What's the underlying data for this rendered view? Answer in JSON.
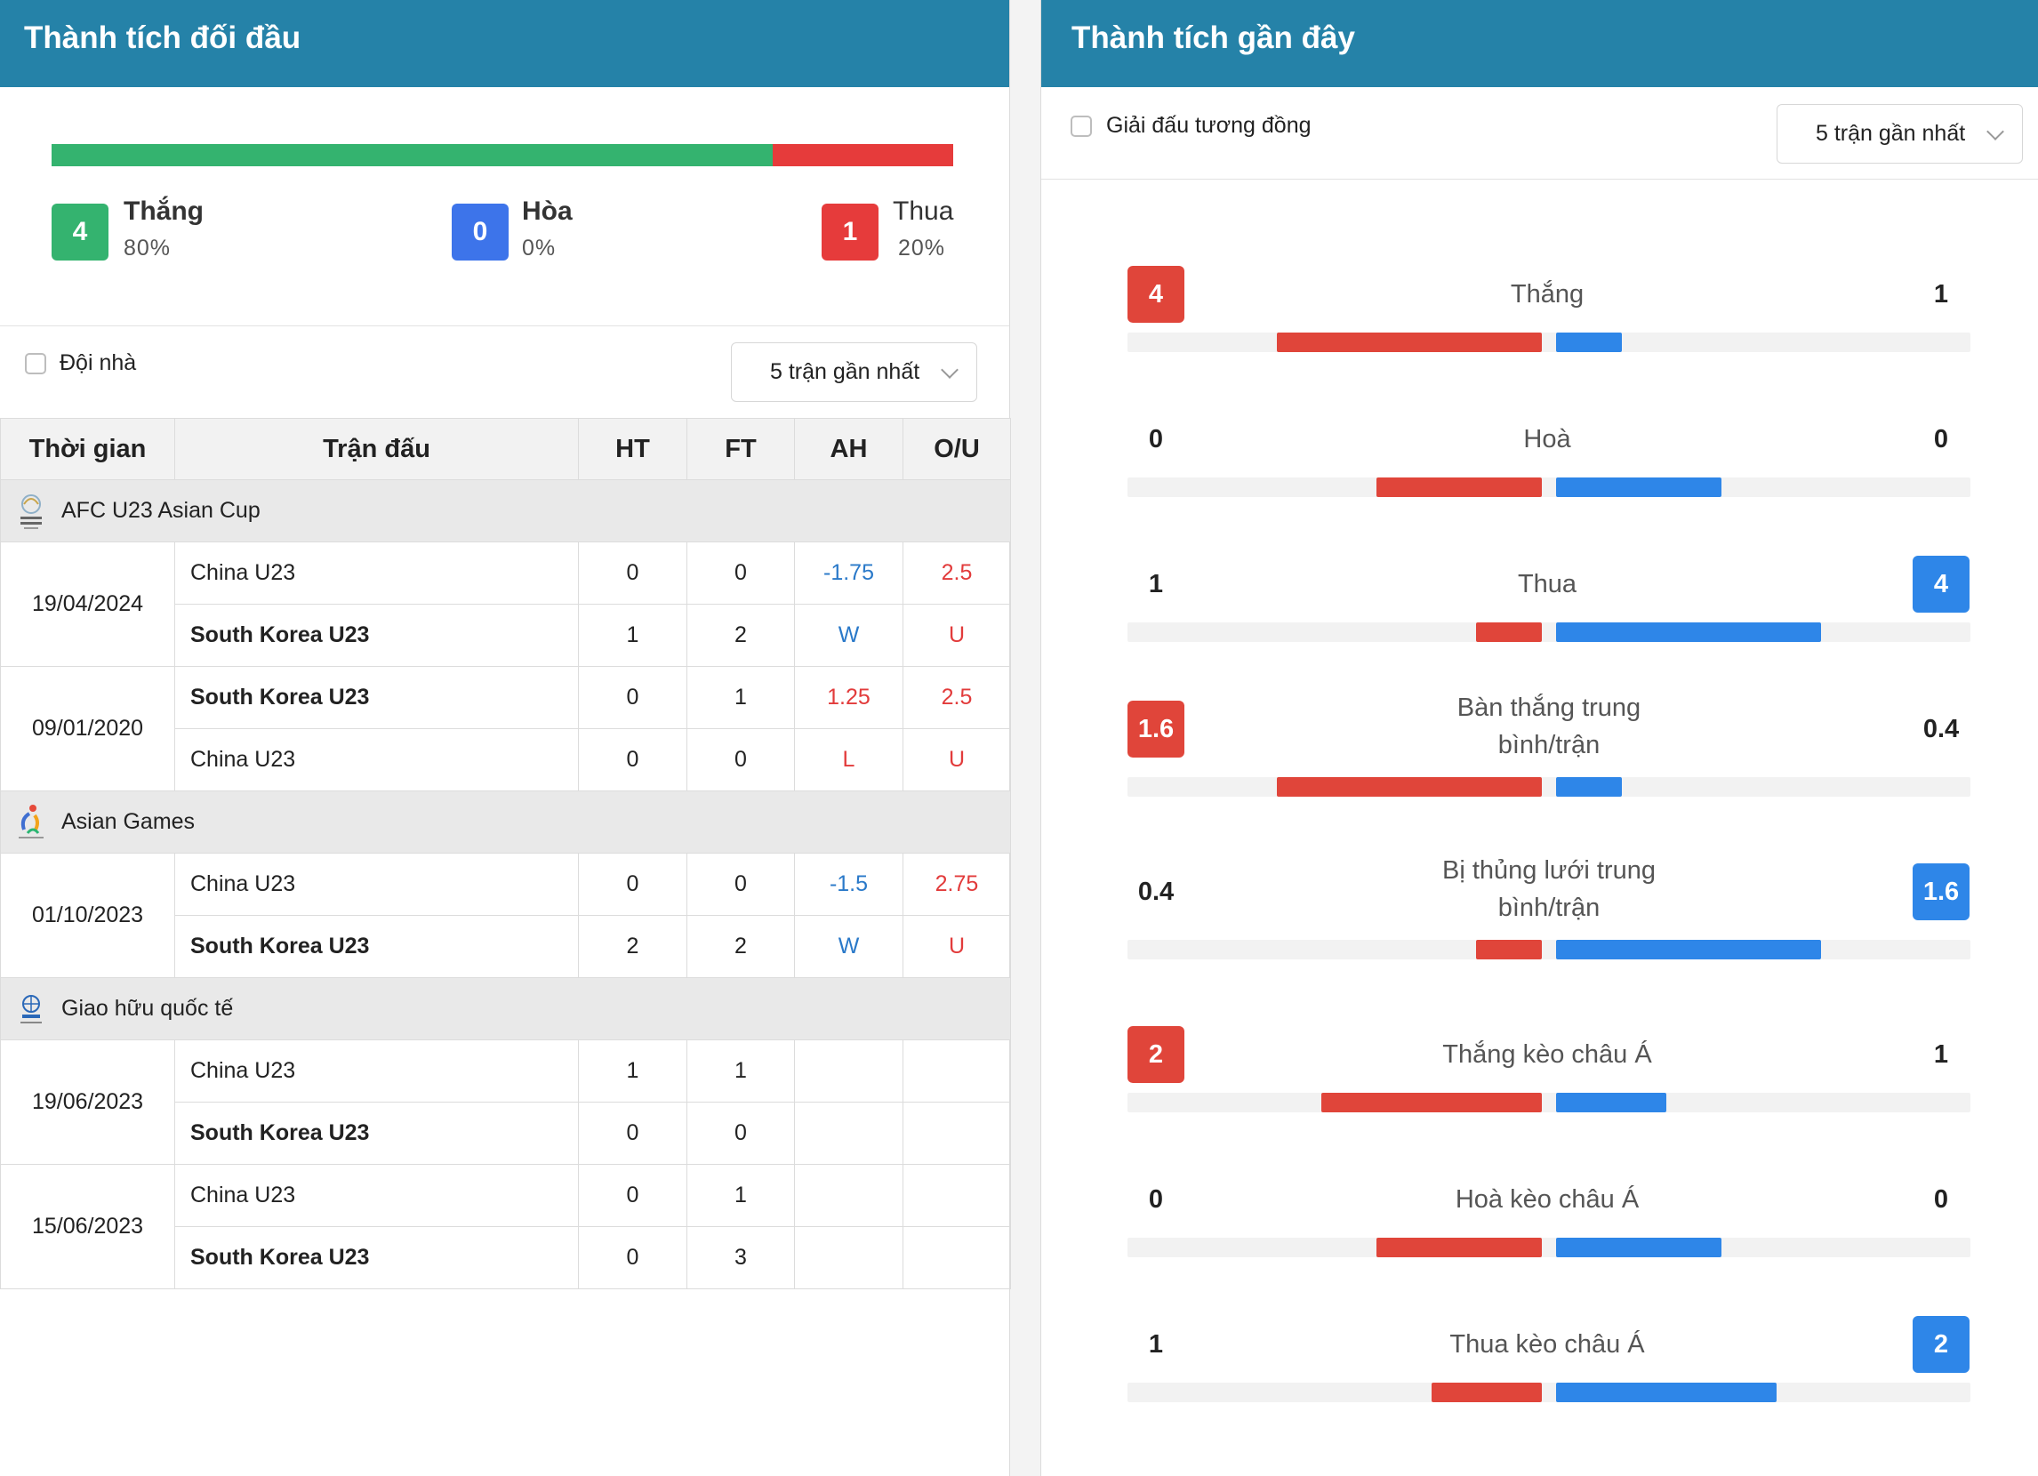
{
  "h2h": {
    "title": "Thành tích đối đầu",
    "win": {
      "count": "4",
      "label": "Thắng",
      "pct": "80%"
    },
    "draw": {
      "count": "0",
      "label": "Hòa",
      "pct": "0%"
    },
    "loss": {
      "count": "1",
      "label": "Thua",
      "pct": "20%"
    },
    "home_only_label": "Đội nhà",
    "filter_value": "5 trận gần nhất",
    "columns": [
      "Thời gian",
      "Trận đấu",
      "HT",
      "FT",
      "AH",
      "O/U"
    ],
    "leagues": [
      {
        "name": "AFC U23 Asian Cup"
      },
      {
        "name": "Asian Games"
      },
      {
        "name": "Giao hữu quốc tế"
      }
    ],
    "matches": [
      {
        "date": "19/04/2024",
        "home": {
          "team": "China U23",
          "ht": "0",
          "ft": "0",
          "ah": "-1.75",
          "ou": "2.5"
        },
        "away": {
          "team": "South Korea U23",
          "ht": "1",
          "ft": "2",
          "ah": "W",
          "ou": "U"
        }
      },
      {
        "date": "09/01/2020",
        "home": {
          "team": "South Korea U23",
          "ht": "0",
          "ft": "1",
          "ah": "1.25",
          "ou": "2.5"
        },
        "away": {
          "team": "China U23",
          "ht": "0",
          "ft": "0",
          "ah": "L",
          "ou": "U"
        }
      },
      {
        "date": "01/10/2023",
        "home": {
          "team": "China U23",
          "ht": "0",
          "ft": "0",
          "ah": "-1.5",
          "ou": "2.75"
        },
        "away": {
          "team": "South Korea U23",
          "ht": "2",
          "ft": "2",
          "ah": "W",
          "ou": "U"
        }
      },
      {
        "date": "19/06/2023",
        "home": {
          "team": "China U23",
          "ht": "1",
          "ft": "1",
          "ah": "",
          "ou": ""
        },
        "away": {
          "team": "South Korea U23",
          "ht": "0",
          "ft": "0",
          "ah": "",
          "ou": ""
        }
      },
      {
        "date": "15/06/2023",
        "home": {
          "team": "China U23",
          "ht": "0",
          "ft": "1",
          "ah": "",
          "ou": ""
        },
        "away": {
          "team": "South Korea U23",
          "ht": "0",
          "ft": "3",
          "ah": "",
          "ou": ""
        }
      }
    ]
  },
  "recent": {
    "title": "Thành tích gần đây",
    "same_league_label": "Giải đấu tương đồng",
    "filter_value": "5 trận gần nhất",
    "stats": [
      {
        "label": "Thắng",
        "left": "4",
        "right": "1",
        "highlight": "left",
        "left_frac": 0.8,
        "right_frac": 0.2
      },
      {
        "label": "Hoà",
        "left": "0",
        "right": "0",
        "highlight": "none",
        "left_frac": 0.5,
        "right_frac": 0.5
      },
      {
        "label": "Thua",
        "left": "1",
        "right": "4",
        "highlight": "right",
        "left_frac": 0.2,
        "right_frac": 0.8
      },
      {
        "label": "Bàn thắng trung bình/trận",
        "left": "1.6",
        "right": "0.4",
        "highlight": "left",
        "left_frac": 0.8,
        "right_frac": 0.2
      },
      {
        "label": "Bị thủng lưới trung bình/trận",
        "left": "0.4",
        "right": "1.6",
        "highlight": "right",
        "left_frac": 0.2,
        "right_frac": 0.8
      },
      {
        "label": "Thắng kèo châu Á",
        "left": "2",
        "right": "1",
        "highlight": "left",
        "left_frac": 0.667,
        "right_frac": 0.333
      },
      {
        "label": "Hoà kèo châu Á",
        "left": "0",
        "right": "0",
        "highlight": "none",
        "left_frac": 0.5,
        "right_frac": 0.5
      },
      {
        "label": "Thua kèo châu Á",
        "left": "1",
        "right": "2",
        "highlight": "right",
        "left_frac": 0.333,
        "right_frac": 0.667
      }
    ]
  },
  "colors": {
    "header": "#2582a8",
    "win": "#34b36f",
    "draw": "#3d74ea",
    "loss": "#e63b3b",
    "left_team": "#e0453a",
    "right_team": "#2e86e8"
  }
}
